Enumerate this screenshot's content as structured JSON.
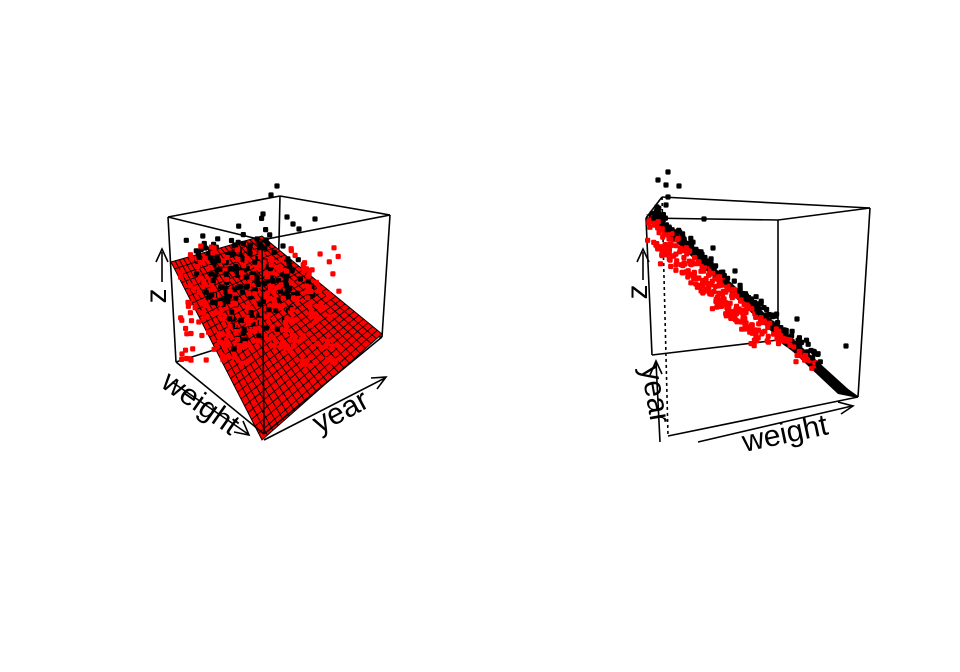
{
  "colors": {
    "background": "#ffffff",
    "box": "#000000",
    "points_above": "#000000",
    "points_below": "#ff0000",
    "plane": "#ff0000",
    "plane_grid": "#000000"
  },
  "chart_data": [
    {
      "type": "scatter",
      "panel": "left",
      "axes": {
        "x": "weight",
        "y": "year",
        "z": "z"
      },
      "surface": "regression plane",
      "series": [
        {
          "group": "above plane",
          "color": "#000000"
        },
        {
          "group": "below plane",
          "color": "#ff0000"
        }
      ]
    },
    {
      "type": "scatter",
      "panel": "right",
      "axes": {
        "x": "weight",
        "y": "year",
        "z": "z"
      },
      "surface": "regression plane (edge-on view)",
      "series": [
        {
          "group": "above plane",
          "color": "#000000"
        },
        {
          "group": "below plane",
          "color": "#ff0000"
        }
      ]
    }
  ]
}
